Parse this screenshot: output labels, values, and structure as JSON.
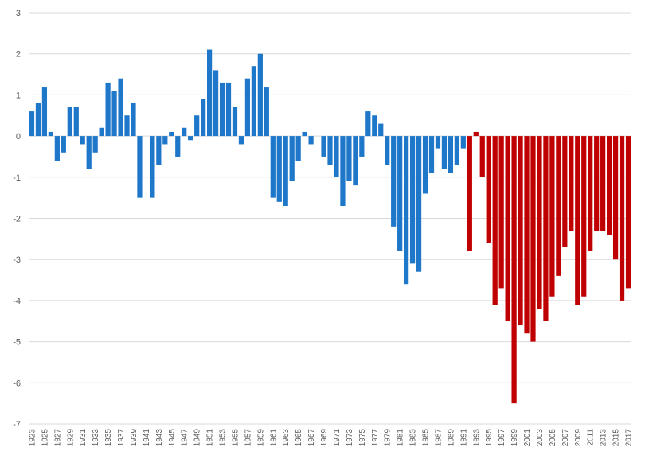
{
  "chart_data": {
    "type": "bar",
    "title": "",
    "xlabel": "",
    "ylabel": "",
    "ylim": [
      -7,
      3
    ],
    "yticks": [
      "3",
      "2",
      "1",
      "0",
      "-1",
      "-2",
      "-3",
      "-4",
      "-5",
      "-6",
      "-7"
    ],
    "grid": true,
    "legend": "none",
    "x_tick_labels": [
      "1923",
      "1925",
      "1927",
      "1929",
      "1931",
      "1933",
      "1935",
      "1937",
      "1939",
      "1941",
      "1943",
      "1945",
      "1947",
      "1949",
      "1951",
      "1953",
      "1955",
      "1957",
      "1959",
      "1961",
      "1963",
      "1965",
      "1967",
      "1969",
      "1971",
      "1973",
      "1975",
      "1977",
      "1979",
      "1981",
      "1983",
      "1985",
      "1987",
      "1989",
      "1991",
      "1993",
      "1995",
      "1997",
      "1999",
      "2001",
      "2003",
      "2005",
      "2007",
      "2009",
      "2011",
      "2013",
      "2015",
      "2017"
    ],
    "colors": {
      "blue": "#1f77c9",
      "red": "#c00000"
    },
    "series": [
      {
        "years": [
          1923,
          1924,
          1925,
          1926,
          1927,
          1928,
          1929,
          1930,
          1931,
          1932,
          1933,
          1934,
          1935,
          1936,
          1937,
          1938,
          1939,
          1940,
          1941,
          1942,
          1943,
          1944,
          1945,
          1946,
          1947,
          1948,
          1949,
          1950,
          1951,
          1952,
          1953,
          1954,
          1955,
          1956,
          1957,
          1958,
          1959,
          1960,
          1961,
          1962,
          1963,
          1964,
          1965,
          1966,
          1967,
          1968,
          1969,
          1970,
          1971,
          1972,
          1973,
          1974,
          1975,
          1976,
          1977,
          1978,
          1979,
          1980,
          1981,
          1982,
          1983,
          1984,
          1985,
          1986,
          1987,
          1988,
          1989,
          1990,
          1991
        ],
        "values": [
          0.6,
          0.8,
          1.2,
          0.1,
          -0.6,
          -0.4,
          0.7,
          0.7,
          -0.2,
          -0.8,
          -0.4,
          0.2,
          1.3,
          1.1,
          1.4,
          0.5,
          0.8,
          -1.5,
          0,
          -1.5,
          -0.7,
          -0.2,
          0.1,
          -0.5,
          0.2,
          -0.1,
          0.5,
          0.9,
          2.1,
          1.6,
          1.3,
          1.3,
          0.7,
          -0.2,
          1.4,
          1.7,
          2.0,
          1.2,
          -1.5,
          -1.6,
          -1.7,
          -1.1,
          -0.6,
          0.1,
          -0.2,
          0,
          -0.5,
          -0.7,
          -1.0,
          -1.7,
          -1.1,
          -1.2,
          -0.5,
          0.6,
          0.5,
          0.3,
          -0.7,
          -2.2,
          -2.8,
          -3.6,
          -3.1,
          -3.3,
          -1.4,
          -0.9,
          -0.3,
          -0.8,
          -0.9,
          -0.7,
          -0.3
        ],
        "color": "#1f77c9"
      },
      {
        "years": [
          1992,
          1993,
          1994,
          1995,
          1996,
          1997,
          1998,
          1999,
          2000,
          2001,
          2002,
          2003,
          2004,
          2005,
          2006,
          2007,
          2008,
          2009,
          2010,
          2011,
          2012,
          2013,
          2014,
          2015,
          2016,
          2017
        ],
        "values": [
          -2.8,
          0.1,
          -1.0,
          -2.6,
          -4.1,
          -3.7,
          -4.5,
          -6.5,
          -4.6,
          -4.8,
          -5.0,
          -4.2,
          -4.5,
          -3.9,
          -3.4,
          -2.7,
          -2.3,
          -4.1,
          -3.9,
          -2.8,
          -2.3,
          -2.3,
          -2.4,
          -3.0,
          -4.0,
          -3.7
        ],
        "color": "#c00000"
      }
    ]
  }
}
